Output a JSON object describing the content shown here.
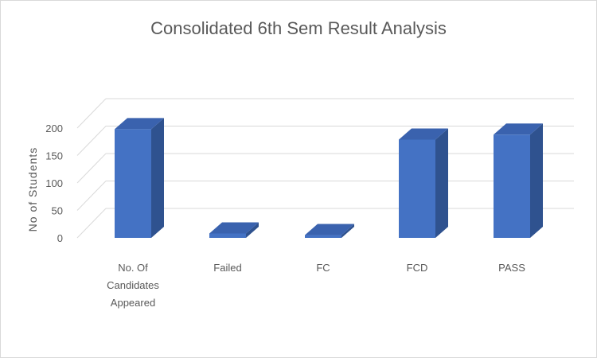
{
  "chart_data": {
    "type": "bar",
    "title": "Consolidated 6th Sem Result Analysis",
    "xlabel": "",
    "ylabel": "No of Students",
    "categories": [
      [
        "No. Of",
        "Candidates",
        "Appeared"
      ],
      [
        "Failed"
      ],
      [
        "FC"
      ],
      [
        "FCD"
      ],
      [
        "PASS"
      ]
    ],
    "values": [
      198,
      8,
      5,
      179,
      188
    ],
    "ylim": [
      0,
      200
    ],
    "yticks": [
      0,
      50,
      100,
      150,
      200
    ],
    "grid": true,
    "legend": "none",
    "bar_color": "#4472C4",
    "bar_side_color": "#2F528F",
    "bar_top_color": "#3A62AE"
  }
}
